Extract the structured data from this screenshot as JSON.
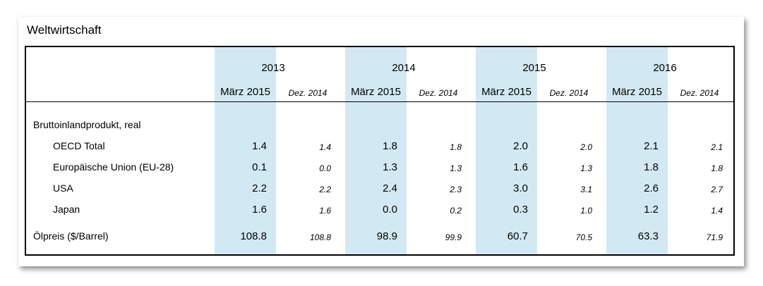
{
  "title": "Weltwirtschaft",
  "columns": [
    {
      "year": "2013",
      "march": "März 2015",
      "dec": "Dez. 2014"
    },
    {
      "year": "2014",
      "march": "März 2015",
      "dec": "Dez. 2014"
    },
    {
      "year": "2015",
      "march": "März 2015",
      "dec": "Dez. 2014"
    },
    {
      "year": "2016",
      "march": "März 2015",
      "dec": "Dez. 2014"
    }
  ],
  "section_label": "Bruttoinlandprodukt, real",
  "rows": [
    {
      "label": "OECD Total",
      "indent": true,
      "values": [
        "1.4",
        "1.4",
        "1.8",
        "1.8",
        "2.0",
        "2.0",
        "2.1",
        "2.1"
      ]
    },
    {
      "label": "Europäische Union (EU-28)",
      "indent": true,
      "values": [
        "0.1",
        "0.0",
        "1.3",
        "1.3",
        "1.6",
        "1.3",
        "1.8",
        "1.8"
      ]
    },
    {
      "label": "USA",
      "indent": true,
      "values": [
        "2.2",
        "2.2",
        "2.4",
        "2.3",
        "3.0",
        "3.1",
        "2.6",
        "2.7"
      ]
    },
    {
      "label": "Japan",
      "indent": true,
      "values": [
        "1.6",
        "1.6",
        "0.0",
        "0.2",
        "0.3",
        "1.0",
        "1.2",
        "1.4"
      ]
    },
    {
      "label": "Ölpreis ($/Barrel)",
      "indent": false,
      "values": [
        "108.8",
        "108.8",
        "98.9",
        "99.9",
        "60.7",
        "70.5",
        "63.3",
        "71.9"
      ]
    }
  ],
  "colors": {
    "highlight_band": "#d2e9f3",
    "border": "#000000"
  }
}
